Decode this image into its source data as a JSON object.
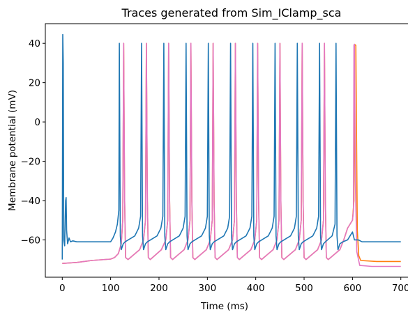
{
  "chart_data": {
    "type": "line",
    "title": "Traces generated from Sim_IClamp_sca",
    "xlabel": "Time (ms)",
    "ylabel": "Membrane potential (mV)",
    "xlim": [
      -35,
      735
    ],
    "ylim": [
      -79,
      50
    ],
    "xticks": [
      0,
      100,
      200,
      300,
      400,
      500,
      600,
      700
    ],
    "yticks": [
      -60,
      -40,
      -20,
      0,
      20,
      40
    ],
    "xtick_labels": [
      "0",
      "100",
      "200",
      "300",
      "400",
      "500",
      "600",
      "700"
    ],
    "ytick_labels": [
      "−60",
      "−40",
      "−20",
      "0",
      "20",
      "40"
    ],
    "grid": false,
    "legend": "none",
    "series": [
      {
        "color": "#ff7f0e",
        "role": "trace",
        "points": [
          [
            0,
            -72
          ],
          [
            30,
            -71.5
          ],
          [
            60,
            -70.5
          ],
          [
            100,
            -69.8
          ],
          [
            108,
            -69
          ],
          [
            116,
            -67
          ],
          [
            122,
            -62
          ],
          [
            125,
            -50
          ],
          [
            127,
            40
          ],
          [
            129,
            -40
          ],
          [
            131,
            -69
          ],
          [
            136,
            -70
          ],
          [
            160,
            -65
          ],
          [
            168,
            -60
          ],
          [
            172,
            -50
          ],
          [
            174,
            40
          ],
          [
            176,
            -40
          ],
          [
            178,
            -69
          ],
          [
            182,
            -70
          ],
          [
            205,
            -65
          ],
          [
            214,
            -60
          ],
          [
            218,
            -50
          ],
          [
            220,
            40
          ],
          [
            222,
            -40
          ],
          [
            224,
            -69
          ],
          [
            228,
            -70
          ],
          [
            252,
            -65
          ],
          [
            260,
            -60
          ],
          [
            264,
            -50
          ],
          [
            266,
            40
          ],
          [
            268,
            -40
          ],
          [
            270,
            -69
          ],
          [
            274,
            -70
          ],
          [
            298,
            -65
          ],
          [
            306,
            -60
          ],
          [
            310,
            -50
          ],
          [
            312,
            40
          ],
          [
            314,
            -40
          ],
          [
            316,
            -69
          ],
          [
            320,
            -70
          ],
          [
            344,
            -65
          ],
          [
            352,
            -60
          ],
          [
            356,
            -50
          ],
          [
            358,
            40
          ],
          [
            360,
            -40
          ],
          [
            362,
            -69
          ],
          [
            366,
            -70
          ],
          [
            390,
            -65
          ],
          [
            398,
            -60
          ],
          [
            402,
            -50
          ],
          [
            404,
            40
          ],
          [
            406,
            -40
          ],
          [
            408,
            -69
          ],
          [
            412,
            -70
          ],
          [
            436,
            -65
          ],
          [
            444,
            -60
          ],
          [
            448,
            -50
          ],
          [
            450,
            40
          ],
          [
            452,
            -40
          ],
          [
            454,
            -69
          ],
          [
            458,
            -70
          ],
          [
            482,
            -65
          ],
          [
            490,
            -60
          ],
          [
            494,
            -50
          ],
          [
            496,
            40
          ],
          [
            498,
            -40
          ],
          [
            500,
            -69
          ],
          [
            504,
            -70
          ],
          [
            528,
            -65
          ],
          [
            536,
            -60
          ],
          [
            540,
            -50
          ],
          [
            542,
            40
          ],
          [
            544,
            -40
          ],
          [
            546,
            -69
          ],
          [
            550,
            -70
          ],
          [
            574,
            -65
          ],
          [
            582,
            -60
          ],
          [
            590,
            -54
          ],
          [
            600,
            -50
          ],
          [
            603,
            -40
          ],
          [
            604,
            39.5
          ],
          [
            607,
            39
          ],
          [
            610,
            -55
          ],
          [
            613,
            -68
          ],
          [
            617,
            -70.5
          ],
          [
            650,
            -71
          ],
          [
            700,
            -71
          ]
        ]
      },
      {
        "color": "#e377c2",
        "role": "trace",
        "points": [
          [
            0,
            -72
          ],
          [
            30,
            -71.5
          ],
          [
            60,
            -70.5
          ],
          [
            100,
            -69.8
          ],
          [
            108,
            -69
          ],
          [
            116,
            -67
          ],
          [
            122,
            -62
          ],
          [
            125,
            -50
          ],
          [
            127,
            40
          ],
          [
            129,
            -40
          ],
          [
            131,
            -69
          ],
          [
            136,
            -70
          ],
          [
            160,
            -65
          ],
          [
            168,
            -60
          ],
          [
            172,
            -50
          ],
          [
            174,
            40
          ],
          [
            176,
            -40
          ],
          [
            178,
            -69
          ],
          [
            182,
            -70
          ],
          [
            205,
            -65
          ],
          [
            214,
            -60
          ],
          [
            218,
            -50
          ],
          [
            220,
            40
          ],
          [
            222,
            -40
          ],
          [
            224,
            -69
          ],
          [
            228,
            -70
          ],
          [
            252,
            -65
          ],
          [
            260,
            -60
          ],
          [
            264,
            -50
          ],
          [
            266,
            40
          ],
          [
            268,
            -40
          ],
          [
            270,
            -69
          ],
          [
            274,
            -70
          ],
          [
            298,
            -65
          ],
          [
            306,
            -60
          ],
          [
            310,
            -50
          ],
          [
            312,
            40
          ],
          [
            314,
            -40
          ],
          [
            316,
            -69
          ],
          [
            320,
            -70
          ],
          [
            344,
            -65
          ],
          [
            352,
            -60
          ],
          [
            356,
            -50
          ],
          [
            358,
            40
          ],
          [
            360,
            -40
          ],
          [
            362,
            -69
          ],
          [
            366,
            -70
          ],
          [
            390,
            -65
          ],
          [
            398,
            -60
          ],
          [
            402,
            -50
          ],
          [
            404,
            40
          ],
          [
            406,
            -40
          ],
          [
            408,
            -69
          ],
          [
            412,
            -70
          ],
          [
            436,
            -65
          ],
          [
            444,
            -60
          ],
          [
            448,
            -50
          ],
          [
            450,
            40
          ],
          [
            452,
            -40
          ],
          [
            454,
            -69
          ],
          [
            458,
            -70
          ],
          [
            482,
            -65
          ],
          [
            490,
            -60
          ],
          [
            494,
            -50
          ],
          [
            496,
            40
          ],
          [
            498,
            -40
          ],
          [
            500,
            -69
          ],
          [
            504,
            -70
          ],
          [
            528,
            -65
          ],
          [
            536,
            -60
          ],
          [
            540,
            -50
          ],
          [
            542,
            40
          ],
          [
            544,
            -40
          ],
          [
            546,
            -69
          ],
          [
            550,
            -70
          ],
          [
            574,
            -65
          ],
          [
            582,
            -60
          ],
          [
            590,
            -54
          ],
          [
            600,
            -50
          ],
          [
            602,
            -45
          ],
          [
            603,
            39
          ],
          [
            604,
            39.5
          ],
          [
            606,
            -30
          ],
          [
            609,
            -66
          ],
          [
            615,
            -73
          ],
          [
            640,
            -73.5
          ],
          [
            700,
            -73.5
          ]
        ]
      },
      {
        "color": "#1f77b4",
        "role": "trace",
        "points": [
          [
            0,
            -70
          ],
          [
            1,
            44.5
          ],
          [
            2,
            30
          ],
          [
            3,
            -60
          ],
          [
            5,
            -63
          ],
          [
            7,
            -40
          ],
          [
            8,
            -38.5
          ],
          [
            9,
            -55
          ],
          [
            11,
            -62
          ],
          [
            14,
            -59
          ],
          [
            17,
            -61
          ],
          [
            22,
            -60.5
          ],
          [
            30,
            -61
          ],
          [
            60,
            -61
          ],
          [
            90,
            -61
          ],
          [
            100,
            -61
          ],
          [
            105,
            -59
          ],
          [
            110,
            -56
          ],
          [
            114,
            -52
          ],
          [
            117,
            -45
          ],
          [
            118,
            40
          ],
          [
            120,
            -58
          ],
          [
            122,
            -65
          ],
          [
            126,
            -62
          ],
          [
            130,
            -61
          ],
          [
            150,
            -58
          ],
          [
            158,
            -54
          ],
          [
            162,
            -48
          ],
          [
            164,
            40
          ],
          [
            166,
            -58
          ],
          [
            168,
            -65
          ],
          [
            172,
            -62
          ],
          [
            176,
            -61
          ],
          [
            196,
            -58
          ],
          [
            204,
            -54
          ],
          [
            208,
            -48
          ],
          [
            210,
            40
          ],
          [
            212,
            -58
          ],
          [
            214,
            -65
          ],
          [
            218,
            -62
          ],
          [
            222,
            -61
          ],
          [
            242,
            -58
          ],
          [
            250,
            -54
          ],
          [
            254,
            -48
          ],
          [
            256,
            40
          ],
          [
            258,
            -58
          ],
          [
            260,
            -65
          ],
          [
            264,
            -62
          ],
          [
            268,
            -61
          ],
          [
            288,
            -58
          ],
          [
            296,
            -54
          ],
          [
            300,
            -48
          ],
          [
            302,
            40
          ],
          [
            304,
            -58
          ],
          [
            306,
            -65
          ],
          [
            310,
            -62
          ],
          [
            314,
            -61
          ],
          [
            334,
            -58
          ],
          [
            342,
            -54
          ],
          [
            346,
            -48
          ],
          [
            348,
            40
          ],
          [
            350,
            -58
          ],
          [
            352,
            -65
          ],
          [
            356,
            -62
          ],
          [
            360,
            -61
          ],
          [
            380,
            -58
          ],
          [
            388,
            -54
          ],
          [
            392,
            -48
          ],
          [
            394,
            40
          ],
          [
            396,
            -58
          ],
          [
            398,
            -65
          ],
          [
            402,
            -62
          ],
          [
            406,
            -61
          ],
          [
            426,
            -58
          ],
          [
            434,
            -54
          ],
          [
            438,
            -48
          ],
          [
            440,
            40
          ],
          [
            442,
            -58
          ],
          [
            444,
            -65
          ],
          [
            448,
            -62
          ],
          [
            452,
            -61
          ],
          [
            472,
            -58
          ],
          [
            480,
            -54
          ],
          [
            484,
            -48
          ],
          [
            486,
            40
          ],
          [
            488,
            -58
          ],
          [
            490,
            -65
          ],
          [
            494,
            -62
          ],
          [
            498,
            -61
          ],
          [
            518,
            -58
          ],
          [
            526,
            -54
          ],
          [
            530,
            -48
          ],
          [
            532,
            40
          ],
          [
            534,
            -58
          ],
          [
            536,
            -65
          ],
          [
            540,
            -62
          ],
          [
            544,
            -61
          ],
          [
            558,
            -58
          ],
          [
            564,
            -52
          ],
          [
            566,
            40
          ],
          [
            568,
            -58
          ],
          [
            570,
            -65
          ],
          [
            574,
            -62
          ],
          [
            580,
            -61
          ],
          [
            590,
            -60
          ],
          [
            595,
            -58
          ],
          [
            600,
            -56
          ],
          [
            604,
            -60
          ],
          [
            612,
            -60
          ],
          [
            620,
            -61
          ],
          [
            640,
            -61
          ],
          [
            660,
            -61
          ],
          [
            680,
            -61
          ],
          [
            700,
            -61
          ]
        ]
      }
    ]
  }
}
